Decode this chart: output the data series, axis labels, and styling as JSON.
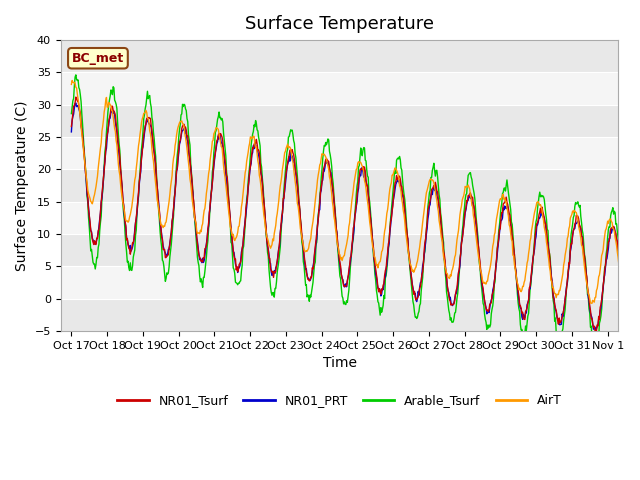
{
  "title": "Surface Temperature",
  "ylabel": "Surface Temperature (C)",
  "xlabel": "Time",
  "ylim": [
    -5,
    40
  ],
  "annotation": "BC_met",
  "xtick_labels": [
    "Oct 17",
    "Oct 18",
    "Oct 19",
    "Oct 20",
    "Oct 21",
    "Oct 22",
    "Oct 23",
    "Oct 24",
    "Oct 25",
    "Oct 26",
    "Oct 27",
    "Oct 28",
    "Oct 29",
    "Oct 30",
    "Oct 31",
    "Nov 1"
  ],
  "legend_entries": [
    "NR01_Tsurf",
    "NR01_PRT",
    "Arable_Tsurf",
    "AirT"
  ],
  "line_colors": [
    "#cc0000",
    "#0000cc",
    "#00cc00",
    "#ff9900"
  ],
  "background_color": "#e8e8e8",
  "band_color": "#f5f5f5",
  "title_fontsize": 13,
  "label_fontsize": 10,
  "tick_fontsize": 8
}
